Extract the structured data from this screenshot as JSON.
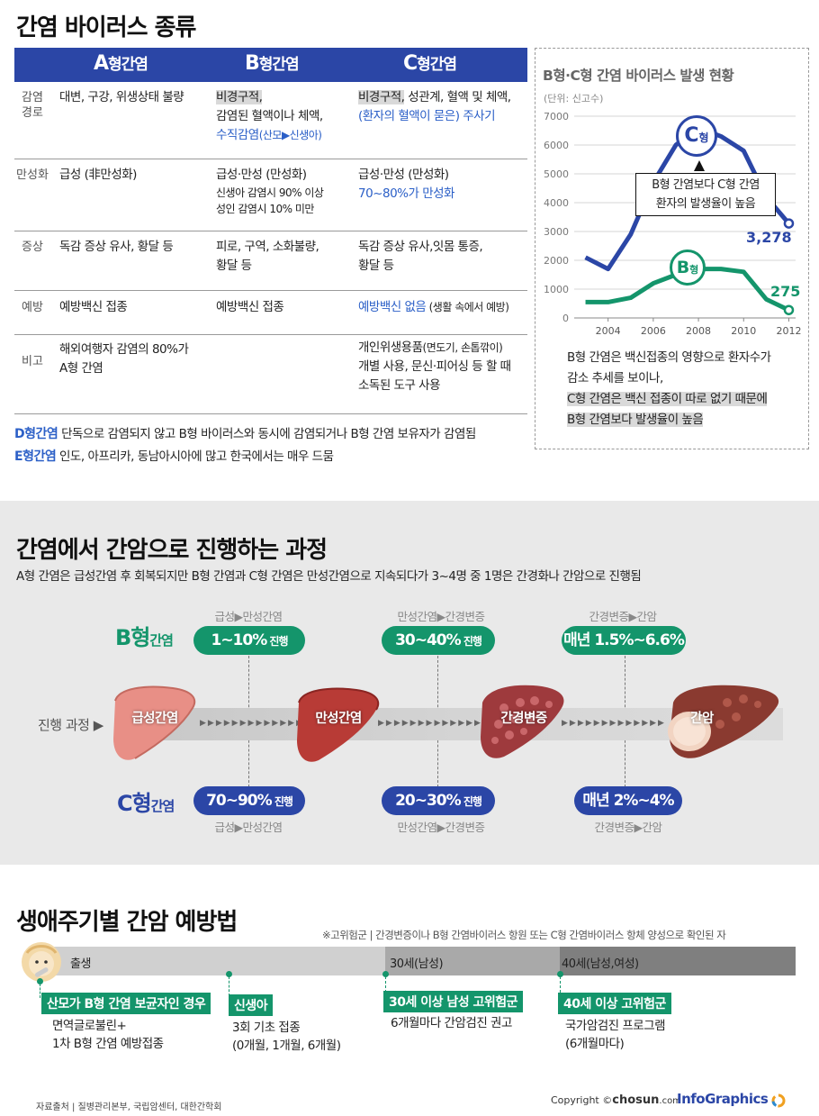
{
  "section1": {
    "title": "간염 바이러스 종류",
    "headers": [
      {
        "letter": "A",
        "suffix": "형간염"
      },
      {
        "letter": "B",
        "suffix": "형간염"
      },
      {
        "letter": "C",
        "suffix": "형간염"
      }
    ],
    "rows": [
      {
        "label": "감염\n경로",
        "a": "대변, 구강, 위생상태 불량",
        "b_hl": "비경구적,",
        "b_l2": "감염된 혈액이나 체액,",
        "b_blue": "수직감염",
        "b_blue_small": "(산모▶신생아)",
        "c_hl": "비경구적,",
        "c_rest": " 성관계, 혈액 및 체액,",
        "c_blue": "(환자의 혈액이 묻은) 주사기"
      },
      {
        "label": "만성화",
        "a": "급성 (非만성화)",
        "b_l1": "급성·만성 (만성화)",
        "b_s1": "신생아 감염시 90% 이상",
        "b_s2": "성인 감염시 10% 미만",
        "c_l1": "급성·만성 (만성화)",
        "c_blue": "70~80%가 만성화"
      },
      {
        "label": "증상",
        "a": "독감 증상 유사, 황달 등",
        "b_l1": "피로, 구역, 소화불량,",
        "b_l2": "황달 등",
        "c_l1": "독감 증상 유사,잇몸 통증,",
        "c_l2": "황달 등"
      },
      {
        "label": "예방",
        "a": "예방백신 접종",
        "b": "예방백신 접종",
        "c_blue": "예방백신 없음",
        "c_rest": " (생활 속에서 예방)"
      },
      {
        "label": "비고",
        "a_l1": "해외여행자 감염의 80%가",
        "a_l2": "A형 간염",
        "c_l1": "개인위생용품",
        "c_l1_small": "(면도기, 손톱깎이)",
        "c_l2": "개별 사용, 문신·피어싱 등 할 때",
        "c_l3": "소독된 도구 사용"
      }
    ],
    "notes": [
      {
        "label": "D형간염",
        "text": "단독으로 감염되지 않고 B형 바이러스와 동시에 감염되거나 B형 간염 보유자가 감염됨"
      },
      {
        "label": "E형간염",
        "text": "인도, 아프리카, 동남아시아에 많고 한국에서는 매우 드뭄"
      }
    ]
  },
  "panel": {
    "title": "B형·C형 간염 바이러스 발생 현황",
    "unit": "(단위: 신고수)",
    "callout_l1": "B형 간염보다 C형 간염",
    "callout_l2": "환자의 발생율이 높음",
    "c_badge": "C",
    "b_badge": "B",
    "badge_suffix": "형",
    "c_last_label": "3,278",
    "b_last_label": "275",
    "note_l1": "B형 간염은 백신접종의 영향으로 환자수가",
    "note_l2": "감소 추세를 보이나,",
    "note_l3": "C형 간염은 백신 접종이 따로 없기 때문에",
    "note_l4": "B형 간염보다  발생율이 높음"
  },
  "chart_data": {
    "type": "line",
    "title": "B형·C형 간염 바이러스 발생 현황",
    "ylabel": "(단위: 신고수)",
    "ylim": [
      0,
      7000
    ],
    "yticks": [
      "7000",
      "6000",
      "5000",
      "4000",
      "3000",
      "2000",
      "1000",
      "0"
    ],
    "xlim": [
      2002.5,
      2012.3
    ],
    "xticks": [
      "2004",
      "2006",
      "2008",
      "2010",
      "2012"
    ],
    "grid": true,
    "series": [
      {
        "name": "C형",
        "color": "#2b46a6",
        "x": [
          2003,
          2004,
          2005,
          2006,
          2007,
          2008,
          2009,
          2010,
          2011,
          2012
        ],
        "y": [
          2100,
          1700,
          2900,
          4700,
          6000,
          6600,
          6300,
          5800,
          4200,
          3278
        ]
      },
      {
        "name": "B형",
        "color": "#14956b",
        "x": [
          2003,
          2004,
          2005,
          2006,
          2007,
          2008,
          2009,
          2010,
          2011,
          2012
        ],
        "y": [
          550,
          550,
          700,
          1200,
          1500,
          1700,
          1700,
          1600,
          650,
          275
        ]
      }
    ]
  },
  "section2": {
    "title": "간염에서 간암으로 진행하는 과정",
    "subtitle": "A형 간염은 급성간염 후 회복되지만 B형 간염과 C형 간염은 만성간염으로 지속되다가 3~4명 중 1명은 간경화나 간암으로 진행됨",
    "b_label": "B형",
    "c_label": "C형",
    "type_suffix": "간염",
    "progress_label": "진행 과정 ▶",
    "livers": [
      "급성간염",
      "만성간염",
      "간경변증",
      "간암"
    ],
    "b_stages": [
      "급성▶만성간염",
      "만성간염▶간경변증",
      "간경변증▶간암"
    ],
    "b_pills": [
      {
        "big": "1~10%",
        "small": " 진행"
      },
      {
        "big": "30~40%",
        "small": " 진행"
      },
      {
        "big": "매년 1.5%~6.6%",
        "small": ""
      }
    ],
    "c_stages": [
      "급성▶만성간염",
      "만성간염▶간경변증",
      "간경변증▶간암"
    ],
    "c_pills": [
      {
        "big": "70~90%",
        "small": " 진행"
      },
      {
        "big": "20~30%",
        "small": " 진행"
      },
      {
        "big": "매년 2%~4%",
        "small": ""
      }
    ],
    "arrows": "▶▶▶▶▶▶▶▶▶▶▶▶▶"
  },
  "section3": {
    "title": "생애주기별 간암 예방법",
    "footnote": "※고위험군 | 간경변증이나 B형 간염바이러스 항원 또는 C형 간염바이러스 항체 양성으로 확인된 자",
    "tl_labels": [
      "출생",
      "30세(남성)",
      "40세(남성,여성)"
    ],
    "items": [
      {
        "tag": "산모가 B형 간염 보균자인 경우",
        "l1": "면역글로불린+",
        "l2": "1차 B형 간염 예방접종"
      },
      {
        "tag": "신생아",
        "l1": "3회 기초 접종",
        "l2": "(0개월, 1개월, 6개월)"
      },
      {
        "tag": "30세 이상 남성 고위험군",
        "l1": "6개월마다 간암검진 권고",
        "l2": ""
      },
      {
        "tag": "40세 이상 고위험군",
        "l1": "국가암검진 프로그램",
        "l2": "(6개월마다)"
      }
    ]
  },
  "footer": {
    "source": "자료출처 | 질병관리본부, 국립암센터, 대한간학회",
    "copyright": "Copyright ©",
    "brand": "chosun",
    "domain": ".com",
    "infographics": "InfoGraphics"
  },
  "colors": {
    "blue": "#2b46a6",
    "green": "#14956b",
    "accent_blue": "#2b5fc7"
  }
}
